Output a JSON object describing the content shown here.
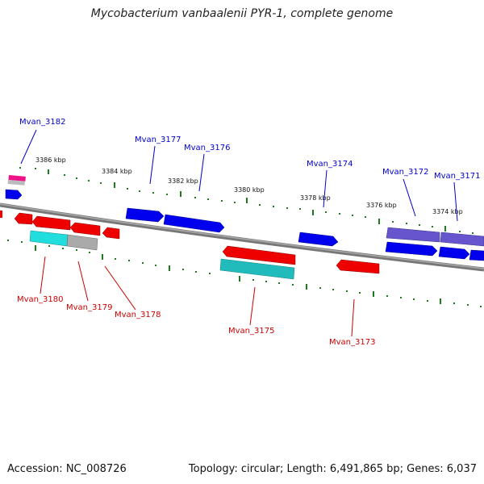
{
  "title": "Mycobacterium vanbaalenii PYR-1, complete genome",
  "accession": "Accession: NC_008726",
  "topology": "Topology: circular; Length: 6,491,865 bp; Genes: 6,037",
  "kbp_labels": [
    "3386 kbp",
    "3384 kbp",
    "3382 kbp",
    "3380 kbp",
    "3378 kbp",
    "3376 kbp",
    "3374 kbp"
  ],
  "gene_labels_top": [
    "Mvan_3182",
    "Mvan_3177",
    "Mvan_3176",
    "Mvan_3174",
    "Mvan_3172",
    "Mvan_3171"
  ],
  "gene_labels_bottom": [
    "Mvan_3180",
    "Mvan_3179",
    "Mvan_3178",
    "Mvan_3175",
    "Mvan_3173"
  ],
  "colors": {
    "forward": "#0000ee",
    "reverse": "#ee0000",
    "backbone": "#777777",
    "tick": "#1f7a1f",
    "cyan": "#22cccc",
    "gray": "#aaaaaa",
    "pink": "#ee1188",
    "purple": "#6655cc"
  }
}
